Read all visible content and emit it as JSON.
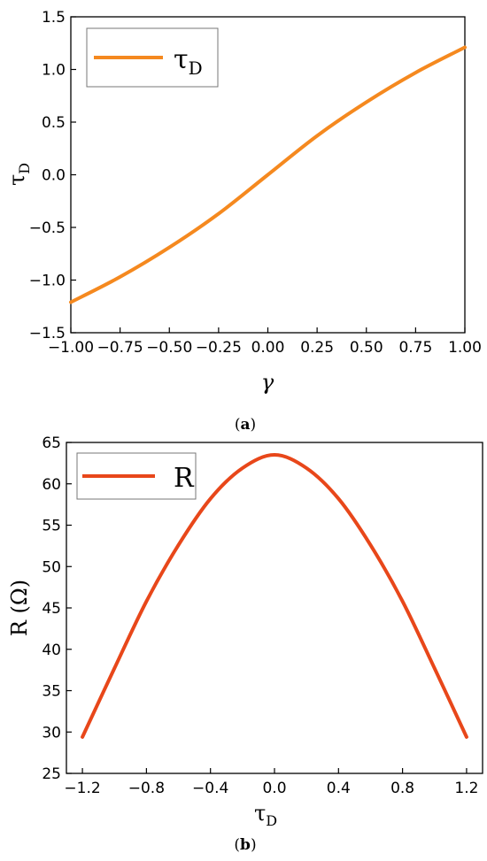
{
  "chart_data": [
    {
      "type": "line",
      "panel_label_open": "(",
      "panel_label_letter": "a",
      "panel_label_close": ")",
      "xlabel": "γ",
      "ylabel_main": "τ",
      "ylabel_sub": "D",
      "xlim": [
        -1.0,
        1.0
      ],
      "ylim": [
        -1.5,
        1.5
      ],
      "xticks": [
        "−1.00",
        "−0.75",
        "−0.50",
        "−0.25",
        "0.00",
        "0.25",
        "0.50",
        "0.75",
        "1.00"
      ],
      "yticks": [
        "−1.5",
        "−1.0",
        "−0.5",
        "0.0",
        "0.5",
        "1.0",
        "1.5"
      ],
      "legend_position": "top-left",
      "grid": false,
      "series": [
        {
          "name_main": "τ",
          "name_sub": "D",
          "color": "#F5891F",
          "x": [
            -1.0,
            -0.75,
            -0.5,
            -0.25,
            0.0,
            0.25,
            0.5,
            0.75,
            1.0
          ],
          "y": [
            -1.21,
            -0.97,
            -0.69,
            -0.37,
            0.0,
            0.37,
            0.69,
            0.97,
            1.21
          ]
        }
      ]
    },
    {
      "type": "line",
      "panel_label_open": "(",
      "panel_label_letter": "b",
      "panel_label_close": ")",
      "xlabel_main": "τ",
      "xlabel_sub": "D",
      "ylabel": "R (Ω)",
      "xlim": [
        -1.3,
        1.3
      ],
      "ylim": [
        25,
        65
      ],
      "xticks": [
        "−1.2",
        "−0.8",
        "−0.4",
        "0.0",
        "0.4",
        "0.8",
        "1.2"
      ],
      "yticks": [
        "25",
        "30",
        "35",
        "40",
        "45",
        "50",
        "55",
        "60",
        "65"
      ],
      "legend_position": "top-left",
      "grid": false,
      "series": [
        {
          "name": "R",
          "color": "#E8471A",
          "x": [
            -1.2,
            -1.0,
            -0.8,
            -0.6,
            -0.4,
            -0.2,
            0.0,
            0.2,
            0.4,
            0.6,
            0.8,
            1.0,
            1.2
          ],
          "y": [
            29.4,
            37.7,
            45.8,
            52.6,
            58.2,
            61.9,
            63.5,
            61.9,
            58.2,
            52.6,
            45.8,
            37.7,
            29.4
          ]
        }
      ]
    }
  ]
}
